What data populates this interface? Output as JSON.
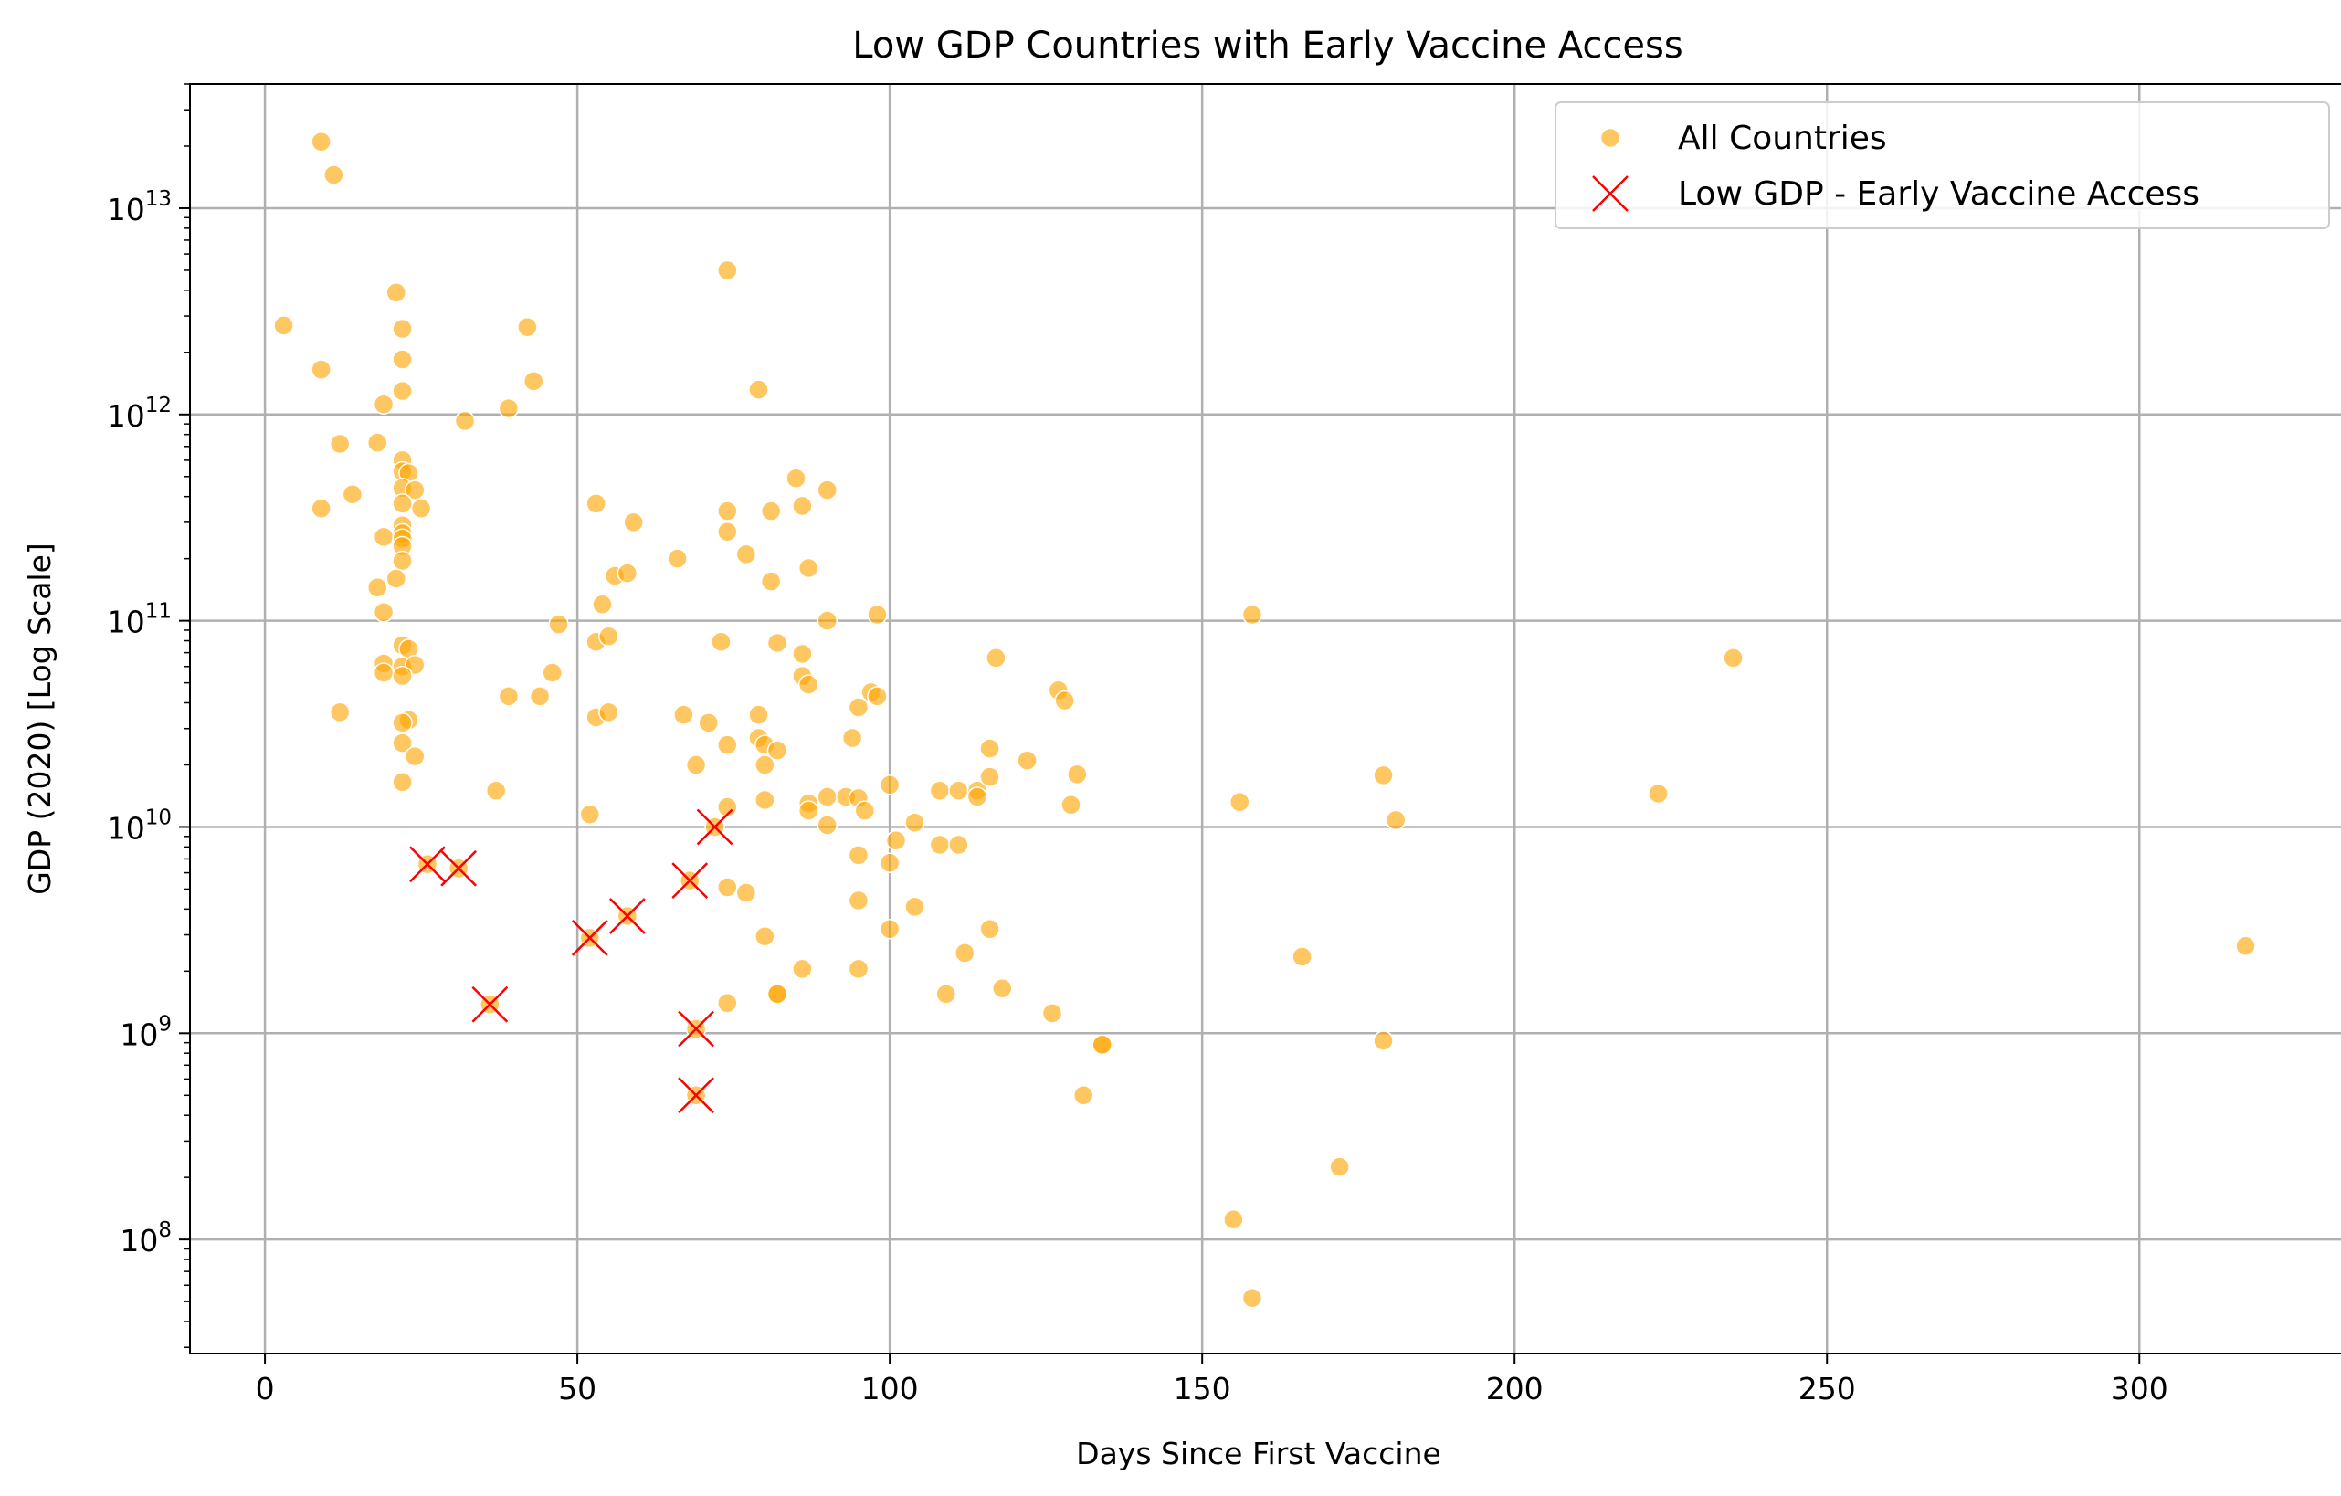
{
  "chart_data": {
    "type": "scatter",
    "title": "Low GDP Countries with Early Vaccine Access",
    "xlabel": "Days Since First Vaccine",
    "ylabel": "GDP (2020) [Log Scale]",
    "x_scale": "linear",
    "y_scale": "log",
    "xlim": [
      -12,
      333
    ],
    "ylim": [
      28000000,
      40000000000000
    ],
    "x_ticks": [
      0,
      50,
      100,
      150,
      200,
      250,
      300
    ],
    "y_ticks": [
      100000000,
      1000000000,
      10000000000,
      100000000000,
      1000000000000,
      10000000000000
    ],
    "y_tick_labels": [
      {
        "base": "10",
        "exp": "8"
      },
      {
        "base": "10",
        "exp": "9"
      },
      {
        "base": "10",
        "exp": "10"
      },
      {
        "base": "10",
        "exp": "11"
      },
      {
        "base": "10",
        "exp": "12"
      },
      {
        "base": "10",
        "exp": "13"
      }
    ],
    "grid": true,
    "legend_position": "top-right",
    "colors": {
      "all": "#FFA500",
      "low": "#FF0000"
    },
    "series": [
      {
        "name": "All Countries",
        "marker": "circle",
        "points": [
          [
            3,
            2700000000000.0
          ],
          [
            9,
            21000000000000.0
          ],
          [
            11,
            14500000000000.0
          ],
          [
            9,
            1650000000000.0
          ],
          [
            9,
            350000000000.0
          ],
          [
            12,
            720000000000.0
          ],
          [
            14,
            410000000000.0
          ],
          [
            12,
            36000000000.0
          ],
          [
            18,
            730000000000.0
          ],
          [
            19,
            1120000000000.0
          ],
          [
            21,
            3900000000000.0
          ],
          [
            22,
            2600000000000.0
          ],
          [
            22,
            1850000000000.0
          ],
          [
            22,
            1300000000000.0
          ],
          [
            22,
            600000000000.0
          ],
          [
            22,
            530000000000.0
          ],
          [
            23,
            520000000000.0
          ],
          [
            22,
            440000000000.0
          ],
          [
            24,
            430000000000.0
          ],
          [
            22,
            370000000000.0
          ],
          [
            25,
            350000000000.0
          ],
          [
            22,
            290000000000.0
          ],
          [
            22,
            265000000000.0
          ],
          [
            19,
            255000000000.0
          ],
          [
            22,
            250000000000.0
          ],
          [
            22,
            230000000000.0
          ],
          [
            22,
            195000000000.0
          ],
          [
            21,
            160000000000.0
          ],
          [
            18,
            145000000000.0
          ],
          [
            19,
            110000000000.0
          ],
          [
            22,
            76000000000.0
          ],
          [
            23,
            73000000000.0
          ],
          [
            19,
            62000000000.0
          ],
          [
            22,
            60000000000.0
          ],
          [
            24,
            61000000000.0
          ],
          [
            19,
            56000000000.0
          ],
          [
            22,
            54000000000.0
          ],
          [
            23,
            33000000000.0
          ],
          [
            22,
            32000000000.0
          ],
          [
            22,
            25500000000.0
          ],
          [
            24,
            22000000000.0
          ],
          [
            22,
            16500000000.0
          ],
          [
            32,
            930000000000.0
          ],
          [
            39,
            1070000000000.0
          ],
          [
            42,
            2650000000000.0
          ],
          [
            43,
            1450000000000.0
          ],
          [
            37,
            15000000000.0
          ],
          [
            39,
            43000000000.0
          ],
          [
            44,
            43000000000.0
          ],
          [
            46,
            56000000000.0
          ],
          [
            47,
            96000000000.0
          ],
          [
            53,
            370000000000.0
          ],
          [
            54,
            120000000000.0
          ],
          [
            53,
            79000000000.0
          ],
          [
            55,
            84000000000.0
          ],
          [
            56,
            165000000000.0
          ],
          [
            58,
            170000000000.0
          ],
          [
            59,
            300000000000.0
          ],
          [
            53,
            34000000000.0
          ],
          [
            55,
            36000000000.0
          ],
          [
            52,
            11500000000.0
          ],
          [
            66,
            200000000000.0
          ],
          [
            67,
            35000000000.0
          ],
          [
            69,
            20000000000.0
          ],
          [
            71,
            32000000000.0
          ],
          [
            73,
            79000000000.0
          ],
          [
            74,
            5000000000000.0
          ],
          [
            74,
            340000000000.0
          ],
          [
            74,
            270000000000.0
          ],
          [
            74,
            25000000000.0
          ],
          [
            74,
            12500000000.0
          ],
          [
            74,
            5100000000.0
          ],
          [
            77,
            4800000000.0
          ],
          [
            74,
            1400000000.0
          ],
          [
            77,
            210000000000.0
          ],
          [
            79,
            1320000000000.0
          ],
          [
            81,
            340000000000.0
          ],
          [
            81,
            155000000000.0
          ],
          [
            82,
            78000000000.0
          ],
          [
            79,
            35000000000.0
          ],
          [
            79,
            27000000000.0
          ],
          [
            80,
            25000000000.0
          ],
          [
            82,
            23500000000.0
          ],
          [
            80,
            20000000000.0
          ],
          [
            80,
            13500000000.0
          ],
          [
            80,
            2950000000.0
          ],
          [
            82,
            1550000000.0
          ],
          [
            82,
            1550000000.0
          ],
          [
            85,
            490000000000.0
          ],
          [
            86,
            360000000000.0
          ],
          [
            87,
            180000000000.0
          ],
          [
            86,
            69000000000.0
          ],
          [
            86,
            54000000000.0
          ],
          [
            87,
            49000000000.0
          ],
          [
            87,
            13000000000.0
          ],
          [
            87,
            12000000000.0
          ],
          [
            90,
            430000000000.0
          ],
          [
            90,
            100000000000.0
          ],
          [
            90,
            14000000000.0
          ],
          [
            90,
            10200000000.0
          ],
          [
            86,
            2050000000.0
          ],
          [
            93,
            14000000000.0
          ],
          [
            94,
            27000000000.0
          ],
          [
            95,
            38000000000.0
          ],
          [
            95,
            13800000000.0
          ],
          [
            96,
            12000000000.0
          ],
          [
            95,
            7300000000.0
          ],
          [
            95,
            4400000000.0
          ],
          [
            95,
            2050000000.0
          ],
          [
            97,
            45000000000.0
          ],
          [
            98,
            43000000000.0
          ],
          [
            98,
            107000000000.0
          ],
          [
            100,
            16000000000.0
          ],
          [
            101,
            8600000000.0
          ],
          [
            100,
            6700000000.0
          ],
          [
            100,
            3200000000.0
          ],
          [
            104,
            10500000000.0
          ],
          [
            104,
            4100000000.0
          ],
          [
            108,
            15000000000.0
          ],
          [
            108,
            8200000000.0
          ],
          [
            109,
            1550000000.0
          ],
          [
            111,
            15000000000.0
          ],
          [
            111,
            8200000000.0
          ],
          [
            112,
            2450000000.0
          ],
          [
            114,
            15000000000.0
          ],
          [
            114,
            14000000000.0
          ],
          [
            116,
            24000000000.0
          ],
          [
            116,
            17500000000.0
          ],
          [
            116,
            3200000000.0
          ],
          [
            117,
            66000000000.0
          ],
          [
            118,
            1650000000.0
          ],
          [
            122,
            21000000000.0
          ],
          [
            126,
            1250000000.0
          ],
          [
            127,
            46000000000.0
          ],
          [
            128,
            41000000000.0
          ],
          [
            129,
            12800000000.0
          ],
          [
            130,
            18000000000.0
          ],
          [
            131,
            500000000.0
          ],
          [
            134,
            880000000.0
          ],
          [
            134,
            880000000.0
          ],
          [
            155,
            125000000.0
          ],
          [
            156,
            13200000000.0
          ],
          [
            158,
            107000000000.0
          ],
          [
            158,
            52000000.0
          ],
          [
            166,
            2350000000.0
          ],
          [
            172,
            225000000.0
          ],
          [
            179,
            17800000000.0
          ],
          [
            179,
            920000000.0
          ],
          [
            181,
            10800000000.0
          ],
          [
            223,
            14500000000.0
          ],
          [
            235,
            66000000000.0
          ],
          [
            317,
            2650000000.0
          ]
        ]
      },
      {
        "name": "Low GDP - Early Vaccine Access",
        "marker": "x",
        "points": [
          [
            26,
            6600000000.0
          ],
          [
            31,
            6300000000.0
          ],
          [
            36,
            1380000000.0
          ],
          [
            52,
            2900000000.0
          ],
          [
            58,
            3700000000.0
          ],
          [
            68,
            5500000000.0
          ],
          [
            69,
            1050000000.0
          ],
          [
            69,
            500000000.0
          ],
          [
            72,
            10000000000.0
          ]
        ]
      }
    ]
  }
}
